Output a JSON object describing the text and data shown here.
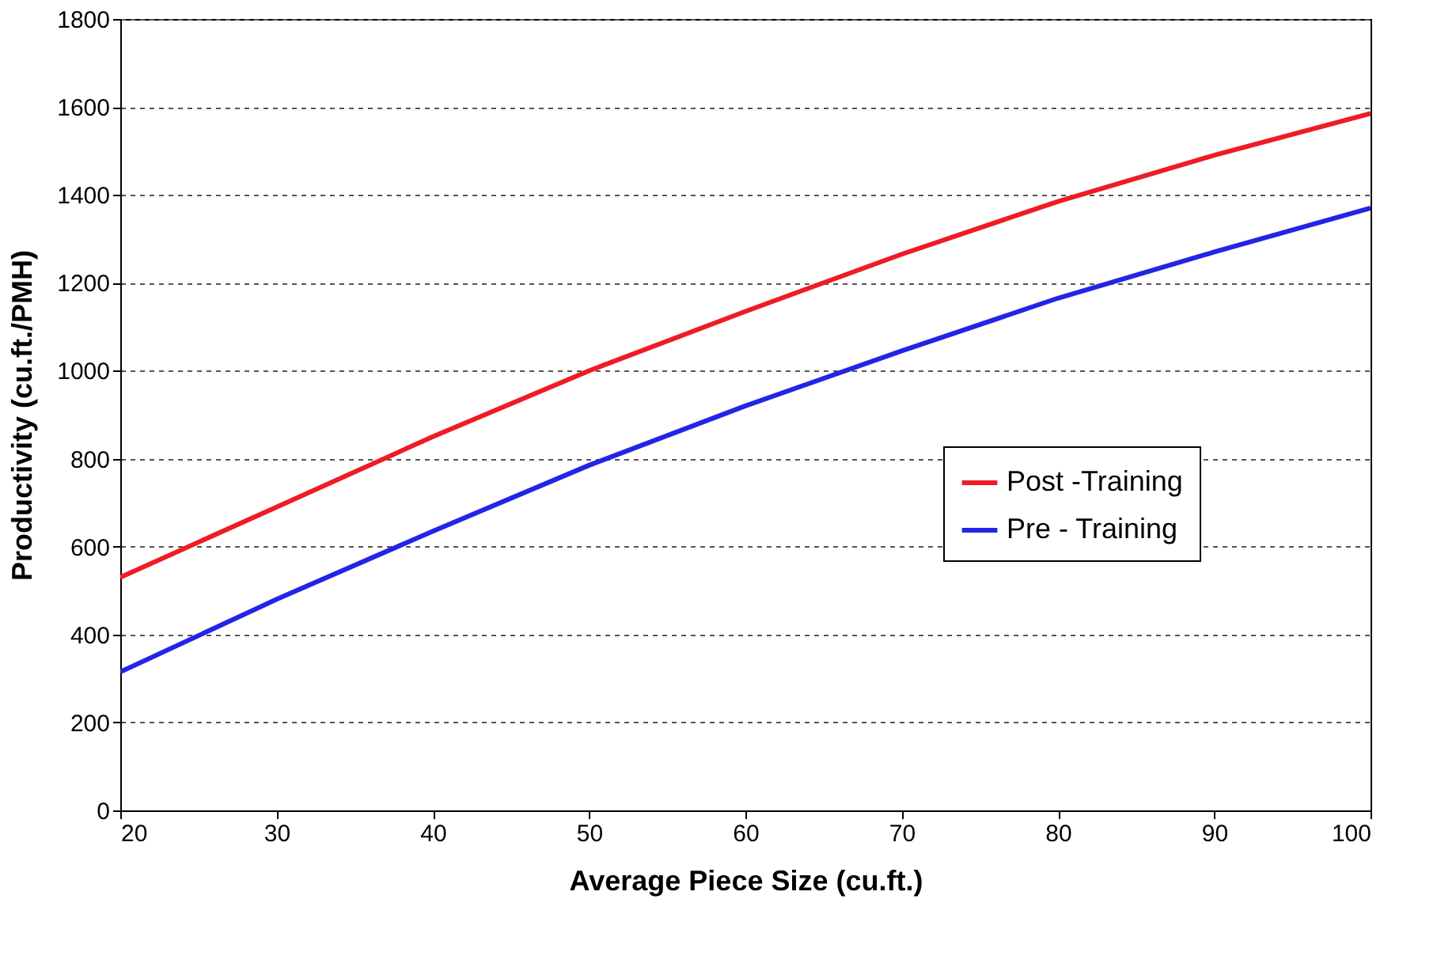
{
  "chart_data": {
    "type": "line",
    "xlabel": "Average Piece Size (cu.ft.)",
    "ylabel": "Productivity (cu.ft./PMH)",
    "x": [
      20,
      30,
      40,
      50,
      60,
      70,
      80,
      90,
      100
    ],
    "series": [
      {
        "name": "Post -Training",
        "color": "#ee1c25",
        "values": [
          530,
          690,
          850,
          1000,
          1135,
          1265,
          1385,
          1490,
          1585
        ]
      },
      {
        "name": "Pre - Training",
        "color": "#2424e6",
        "values": [
          315,
          480,
          635,
          785,
          920,
          1045,
          1165,
          1270,
          1370
        ]
      }
    ],
    "xlim": [
      20,
      100
    ],
    "xticks": [
      20,
      30,
      40,
      50,
      60,
      70,
      80,
      90,
      100
    ],
    "ylim": [
      0,
      1800
    ],
    "yticks": [
      0,
      200,
      400,
      600,
      800,
      1000,
      1200,
      1400,
      1600,
      1800
    ],
    "grid": "y",
    "legend": "right",
    "line_style": "solid",
    "marker": "none"
  }
}
